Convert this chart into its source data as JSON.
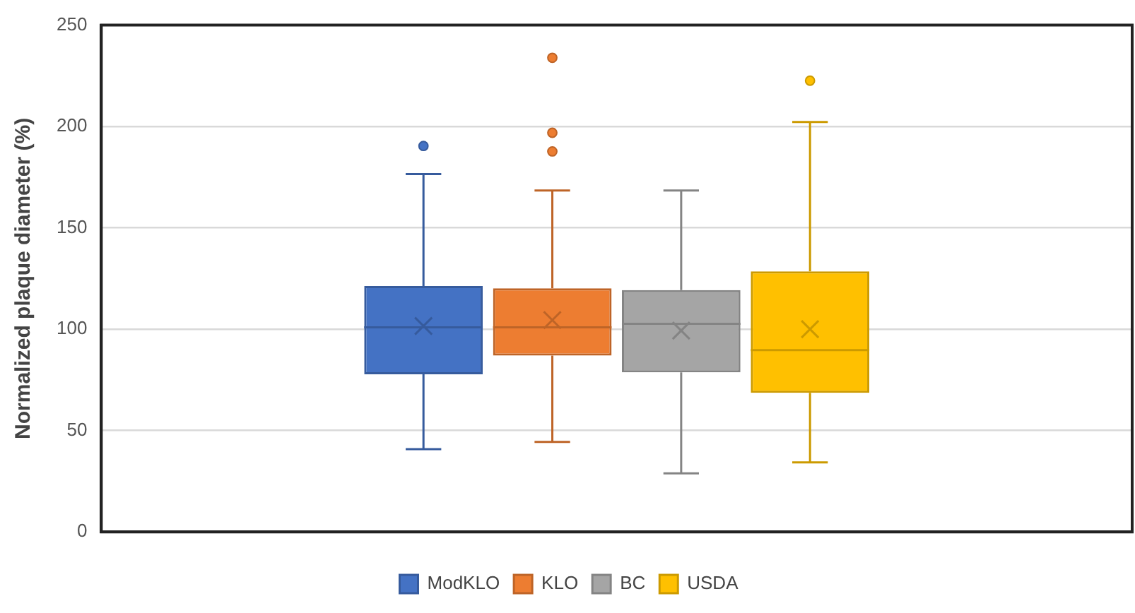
{
  "chart_data": {
    "type": "box",
    "ylabel": "Normalized plaque diameter (%)",
    "categories": [
      null
    ],
    "ylim": [
      0,
      250
    ],
    "yticks": [
      0,
      50,
      100,
      150,
      200,
      250
    ],
    "grid": "y",
    "legend": "bottom",
    "series": [
      {
        "name": "ModKLO",
        "color": "#4472c4",
        "boxes": [
          {
            "low": 40.8,
            "q1": 77.8,
            "median": 100.9,
            "q3": 121.3,
            "high": 176.5,
            "mean": 101.6,
            "outliers": [
              190.4
            ]
          }
        ]
      },
      {
        "name": "KLO",
        "color": "#ed7d31",
        "boxes": [
          {
            "low": 44.4,
            "q1": 87,
            "median": 100.9,
            "q3": 120.2,
            "high": 168.4,
            "mean": 104.5,
            "outliers": [
              233.9,
              196.9,
              187.7
            ]
          }
        ]
      },
      {
        "name": "BC",
        "color": "#a5a5a5",
        "boxes": [
          {
            "low": 28.9,
            "q1": 78.7,
            "median": 102.7,
            "q3": 119.3,
            "high": 168.4,
            "mean": 99.3
          }
        ]
      },
      {
        "name": "USDA",
        "color": "#ffc000",
        "boxes": [
          {
            "low": 34.3,
            "q1": 68.6,
            "median": 89.7,
            "q3": 128.5,
            "high": 202.2,
            "mean": 100,
            "outliers": [
              222.6
            ]
          }
        ]
      }
    ]
  }
}
